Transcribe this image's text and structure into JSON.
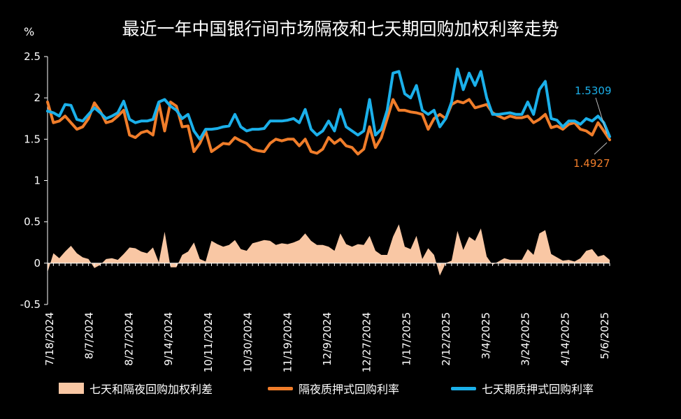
{
  "chart_data": {
    "type": "line",
    "title": "最近一年中国银行间市场隔夜和七天期回购加权利率走势",
    "ylabel": "%",
    "ylim": [
      -0.5,
      2.5
    ],
    "yticks": [
      "2.5",
      "2",
      "1.5",
      "1",
      "0.5",
      "0",
      "-0.5"
    ],
    "xticks": [
      "7/18/2024",
      "8/7/2024",
      "8/27/2024",
      "9/14/2024",
      "10/11/2024",
      "10/30/2024",
      "11/19/2024",
      "12/9/2024",
      "12/27/2024",
      "1/17/2025",
      "2/12/2025",
      "3/4/2025",
      "3/24/2025",
      "4/14/2025",
      "5/6/2025"
    ],
    "legend_position": "bottom",
    "grid": false,
    "series": [
      {
        "name": "七天期质押式回购利率",
        "color": "#1BB0EA",
        "values": [
          1.84,
          1.82,
          1.78,
          1.92,
          1.91,
          1.74,
          1.72,
          1.8,
          1.88,
          1.82,
          1.75,
          1.78,
          1.82,
          1.96,
          1.74,
          1.7,
          1.72,
          1.72,
          1.74,
          1.95,
          1.98,
          1.9,
          1.85,
          1.75,
          1.8,
          1.6,
          1.5,
          1.62,
          1.62,
          1.63,
          1.65,
          1.66,
          1.8,
          1.65,
          1.6,
          1.62,
          1.62,
          1.63,
          1.72,
          1.72,
          1.72,
          1.73,
          1.75,
          1.7,
          1.86,
          1.62,
          1.55,
          1.6,
          1.72,
          1.6,
          1.86,
          1.65,
          1.6,
          1.55,
          1.6,
          1.98,
          1.55,
          1.62,
          1.85,
          2.3,
          2.32,
          2.05,
          2.0,
          2.15,
          1.85,
          1.8,
          1.85,
          1.65,
          1.75,
          1.95,
          2.35,
          2.1,
          2.3,
          2.15,
          2.32,
          2.0,
          1.8,
          1.8,
          1.81,
          1.82,
          1.8,
          1.8,
          1.95,
          1.8,
          2.1,
          2.2,
          1.75,
          1.73,
          1.65,
          1.72,
          1.72,
          1.68,
          1.75,
          1.72,
          1.78,
          1.7,
          1.5309
        ]
      },
      {
        "name": "隔夜质押式回购利率",
        "color": "#F07D2A",
        "values": [
          1.95,
          1.7,
          1.72,
          1.78,
          1.7,
          1.62,
          1.65,
          1.75,
          1.94,
          1.84,
          1.7,
          1.72,
          1.78,
          1.85,
          1.55,
          1.52,
          1.58,
          1.6,
          1.55,
          1.94,
          1.6,
          1.95,
          1.9,
          1.65,
          1.66,
          1.35,
          1.45,
          1.6,
          1.35,
          1.4,
          1.45,
          1.44,
          1.52,
          1.48,
          1.45,
          1.38,
          1.36,
          1.35,
          1.45,
          1.5,
          1.48,
          1.5,
          1.5,
          1.42,
          1.5,
          1.35,
          1.33,
          1.38,
          1.52,
          1.45,
          1.5,
          1.42,
          1.4,
          1.32,
          1.38,
          1.65,
          1.4,
          1.52,
          1.75,
          1.98,
          1.85,
          1.85,
          1.83,
          1.82,
          1.8,
          1.62,
          1.75,
          1.8,
          1.75,
          1.92,
          1.96,
          1.94,
          1.98,
          1.88,
          1.9,
          1.92,
          1.82,
          1.78,
          1.75,
          1.78,
          1.76,
          1.76,
          1.78,
          1.7,
          1.74,
          1.8,
          1.64,
          1.66,
          1.62,
          1.68,
          1.7,
          1.62,
          1.6,
          1.55,
          1.7,
          1.6,
          1.4927
        ]
      },
      {
        "name": "七天和隔夜回购加权利差",
        "color": "#F9C7A4",
        "values": [
          -0.11,
          0.12,
          0.06,
          0.14,
          0.21,
          0.12,
          0.07,
          0.05,
          -0.06,
          -0.02,
          0.05,
          0.06,
          0.04,
          0.11,
          0.19,
          0.18,
          0.14,
          0.12,
          0.19,
          0.01,
          0.38,
          -0.05,
          -0.05,
          0.1,
          0.14,
          0.25,
          0.05,
          0.02,
          0.27,
          0.23,
          0.2,
          0.22,
          0.28,
          0.17,
          0.15,
          0.24,
          0.26,
          0.28,
          0.27,
          0.22,
          0.24,
          0.23,
          0.25,
          0.28,
          0.36,
          0.27,
          0.22,
          0.22,
          0.2,
          0.15,
          0.36,
          0.23,
          0.2,
          0.23,
          0.22,
          0.33,
          0.15,
          0.1,
          0.1,
          0.32,
          0.47,
          0.2,
          0.17,
          0.33,
          0.05,
          0.18,
          0.1,
          -0.15,
          0.0,
          0.03,
          0.39,
          0.16,
          0.32,
          0.27,
          0.42,
          0.08,
          -0.02,
          0.02,
          0.06,
          0.04,
          0.04,
          0.04,
          0.17,
          0.1,
          0.36,
          0.4,
          0.11,
          0.07,
          0.03,
          0.04,
          0.02,
          0.06,
          0.15,
          0.17,
          0.08,
          0.1,
          0.04
        ]
      }
    ],
    "annotations": [
      {
        "text": "1.5309",
        "series": "七天期质押式回购利率",
        "color": "#1BB0EA",
        "position": "above-end"
      },
      {
        "text": "1.4927",
        "series": "隔夜质押式回购利率",
        "color": "#F07D2A",
        "position": "below-end"
      }
    ]
  }
}
